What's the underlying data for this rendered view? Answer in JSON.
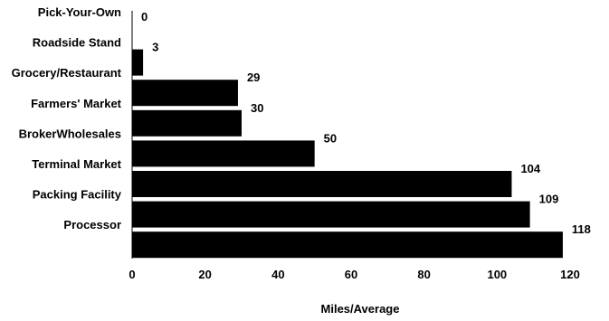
{
  "chart_data": {
    "type": "bar",
    "orientation": "horizontal",
    "categories": [
      "Pick-Your-Own",
      "Roadside Stand",
      "Grocery/Restaurant",
      "Farmers' Market",
      "BrokerWholesales",
      "Terminal Market",
      "Packing Facility",
      "Processor"
    ],
    "values": [
      0,
      3,
      29,
      30,
      50,
      104,
      109,
      118
    ],
    "value_labels": [
      "0",
      "3",
      "29",
      "30",
      "50",
      "104",
      "109",
      "118"
    ],
    "xlabel": "Miles/Average",
    "ylabel": "",
    "title": "",
    "xlim": [
      0,
      120
    ],
    "xticks": [
      0,
      20,
      40,
      60,
      80,
      100,
      120
    ],
    "xtick_labels": [
      "0",
      "20",
      "40",
      "60",
      "80",
      "100",
      "120"
    ],
    "grid": false,
    "bar_color": "#000000"
  }
}
